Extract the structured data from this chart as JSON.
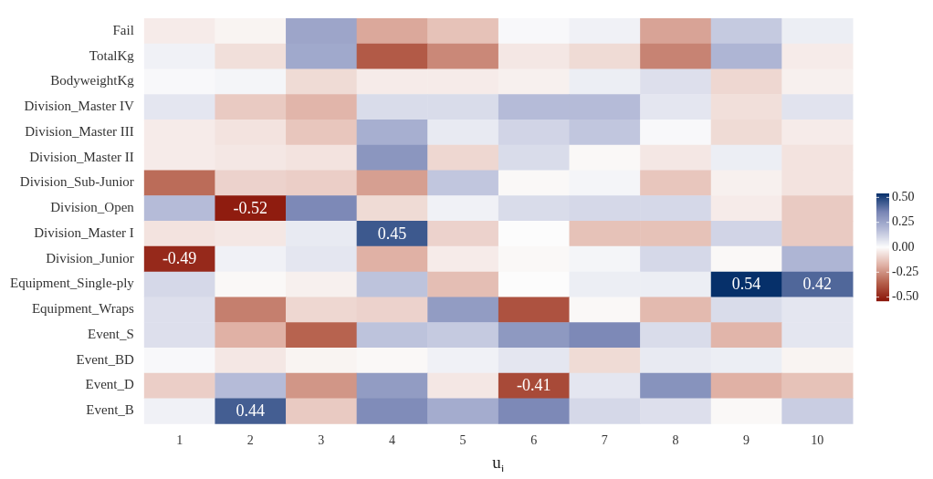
{
  "chart_data": {
    "type": "heatmap",
    "xlabel": "u$_{i}$",
    "categories": [
      "1",
      "2",
      "3",
      "4",
      "5",
      "6",
      "7",
      "8",
      "9",
      "10"
    ],
    "y_categories": [
      "Fail",
      "TotalKg",
      "BodyweightKg",
      "Division_Master IV",
      "Division_Master III",
      "Division_Master II",
      "Division_Sub-Junior",
      "Division_Open",
      "Division_Master I",
      "Division_Junior",
      "Equipment_Single-ply",
      "Equipment_Wraps",
      "Event_S",
      "Event_BD",
      "Event_D",
      "Event_B"
    ],
    "cells": [
      [
        -0.04,
        -0.02,
        0.25,
        -0.2,
        -0.14,
        0.01,
        0.03,
        -0.21,
        0.14,
        0.04
      ],
      [
        0.03,
        -0.07,
        0.24,
        -0.37,
        -0.27,
        -0.05,
        -0.08,
        -0.28,
        0.2,
        -0.04
      ],
      [
        0.01,
        0.02,
        -0.08,
        -0.04,
        -0.04,
        -0.03,
        0.04,
        0.08,
        -0.09,
        -0.03
      ],
      [
        0.06,
        -0.12,
        -0.17,
        0.09,
        0.09,
        0.18,
        0.18,
        0.06,
        -0.07,
        0.07
      ],
      [
        -0.04,
        -0.06,
        -0.13,
        0.22,
        0.05,
        0.11,
        0.15,
        0.01,
        -0.08,
        -0.04
      ],
      [
        -0.04,
        -0.05,
        -0.06,
        0.3,
        -0.09,
        0.09,
        -0.01,
        -0.05,
        0.04,
        -0.06
      ],
      [
        -0.33,
        -0.1,
        -0.11,
        -0.22,
        0.15,
        -0.01,
        0.02,
        -0.13,
        -0.03,
        -0.06
      ],
      [
        0.18,
        -0.52,
        0.34,
        -0.08,
        0.03,
        0.09,
        0.1,
        0.1,
        -0.04,
        -0.12
      ],
      [
        -0.06,
        -0.05,
        0.05,
        0.45,
        -0.1,
        0.0,
        -0.14,
        -0.14,
        0.11,
        -0.12
      ],
      [
        -0.49,
        0.03,
        0.06,
        -0.18,
        -0.04,
        -0.01,
        0.02,
        0.1,
        -0.01,
        0.2
      ],
      [
        0.1,
        -0.01,
        -0.03,
        0.16,
        -0.15,
        0.0,
        0.04,
        0.04,
        0.54,
        0.42
      ],
      [
        0.08,
        -0.29,
        -0.09,
        -0.1,
        0.28,
        -0.39,
        -0.01,
        -0.16,
        0.09,
        0.06
      ],
      [
        0.08,
        -0.18,
        -0.35,
        0.16,
        0.14,
        0.29,
        0.34,
        0.09,
        -0.17,
        0.06
      ],
      [
        0.01,
        -0.05,
        -0.02,
        -0.01,
        0.03,
        0.06,
        -0.08,
        0.05,
        0.04,
        -0.02
      ],
      [
        -0.11,
        0.18,
        -0.24,
        0.28,
        -0.05,
        -0.41,
        0.06,
        0.31,
        -0.18,
        -0.14
      ],
      [
        0.03,
        0.44,
        -0.12,
        0.33,
        0.23,
        0.34,
        0.1,
        0.08,
        -0.01,
        0.13
      ]
    ],
    "cell_labels": [
      [
        null,
        null,
        null,
        null,
        null,
        null,
        null,
        null,
        null,
        null
      ],
      [
        null,
        null,
        null,
        null,
        null,
        null,
        null,
        null,
        null,
        null
      ],
      [
        null,
        null,
        null,
        null,
        null,
        null,
        null,
        null,
        null,
        null
      ],
      [
        null,
        null,
        null,
        null,
        null,
        null,
        null,
        null,
        null,
        null
      ],
      [
        null,
        null,
        null,
        null,
        null,
        null,
        null,
        null,
        null,
        null
      ],
      [
        null,
        null,
        null,
        null,
        null,
        null,
        null,
        null,
        null,
        null
      ],
      [
        null,
        null,
        null,
        null,
        null,
        null,
        null,
        null,
        null,
        null
      ],
      [
        null,
        "-0.52",
        null,
        null,
        null,
        null,
        null,
        null,
        null,
        null
      ],
      [
        null,
        null,
        null,
        "0.45",
        null,
        null,
        null,
        null,
        null,
        null
      ],
      [
        "-0.49",
        null,
        null,
        null,
        null,
        null,
        null,
        null,
        null,
        null
      ],
      [
        null,
        null,
        null,
        null,
        null,
        null,
        null,
        null,
        "0.54",
        "0.42"
      ],
      [
        null,
        null,
        null,
        null,
        null,
        null,
        null,
        null,
        null,
        null
      ],
      [
        null,
        null,
        null,
        null,
        null,
        null,
        null,
        null,
        null,
        null
      ],
      [
        null,
        null,
        null,
        null,
        null,
        null,
        null,
        null,
        null,
        null
      ],
      [
        null,
        null,
        null,
        null,
        null,
        "-0.41",
        null,
        null,
        null,
        null
      ],
      [
        null,
        "0.44",
        null,
        null,
        null,
        null,
        null,
        null,
        null,
        null
      ]
    ],
    "clim": [
      -0.54,
      0.54
    ],
    "cticks": [
      {
        "value": 0.5,
        "label": "0.50"
      },
      {
        "value": 0.25,
        "label": "0.25"
      },
      {
        "value": 0,
        "label": "0.00"
      },
      {
        "value": -0.25,
        "label": "-0.25"
      },
      {
        "value": -0.5,
        "label": "-0.50"
      }
    ]
  }
}
